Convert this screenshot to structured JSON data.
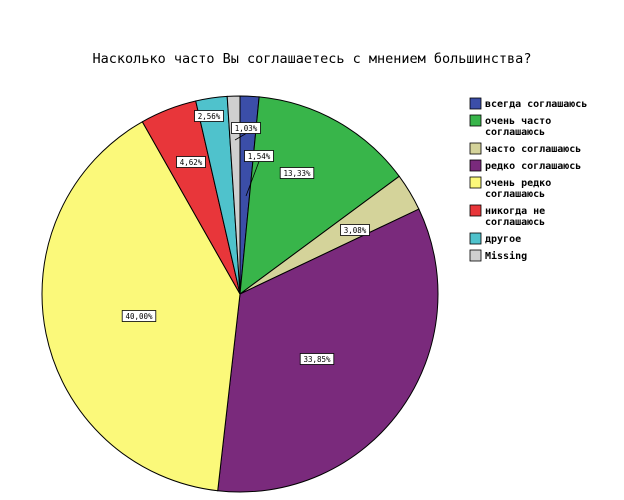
{
  "chart_data": {
    "type": "pie",
    "title": "Насколько часто Вы соглашаетесь с мнением большинства?",
    "start_angle_deg": 0,
    "direction": "clockwise",
    "legend_position": "right",
    "slices": [
      {
        "legend": [
          "всегда соглашаюсь"
        ],
        "value": 1.54,
        "label": "1,54%",
        "color": "#3b4ea8"
      },
      {
        "legend": [
          "очень часто",
          "соглашаюсь"
        ],
        "value": 13.33,
        "label": "13,33%",
        "color": "#38b54a"
      },
      {
        "legend": [
          "часто соглашаюсь"
        ],
        "value": 3.08,
        "label": "3,08%",
        "color": "#d4d39a"
      },
      {
        "legend": [
          "редко соглашаюсь"
        ],
        "value": 33.85,
        "label": "33,85%",
        "color": "#7a2a7c"
      },
      {
        "legend": [
          "очень редко",
          "соглашаюсь"
        ],
        "value": 40.0,
        "label": "40,00%",
        "color": "#fbf97a"
      },
      {
        "legend": [
          "никогда не",
          "соглашаюсь"
        ],
        "value": 4.62,
        "label": "4,62%",
        "color": "#e8363a"
      },
      {
        "legend": [
          "другое"
        ],
        "value": 2.56,
        "label": "2,56%",
        "color": "#4fc2cc"
      },
      {
        "legend": [
          "Missing"
        ],
        "value": 1.03,
        "label": "1,03%",
        "color": "#cfcfcf"
      }
    ]
  }
}
